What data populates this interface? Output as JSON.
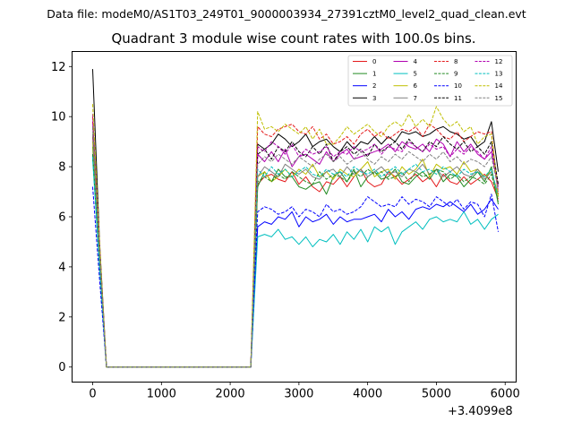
{
  "figure": {
    "suptitle": "Data file: modeM0/AS1T03_249T01_9000003934_27391cztM0_level2_quad_clean.evt",
    "offset_text": "+3.4099e8"
  },
  "chart_data": {
    "type": "line",
    "title": "Quadrant 3 module wise count rates with 100.0s bins.",
    "xlabel": "",
    "ylabel": "",
    "xlim": [
      -300,
      6160
    ],
    "ylim": [
      -0.6,
      12.6
    ],
    "xticks": [
      0,
      1000,
      2000,
      3000,
      4000,
      5000,
      6000
    ],
    "yticks": [
      0,
      2,
      4,
      6,
      8,
      10,
      12
    ],
    "grid": false,
    "legend_position": "top-right",
    "legend_columns": 4,
    "x": [
      0,
      100,
      200,
      2300,
      2400,
      2500,
      2600,
      2700,
      2800,
      2900,
      3000,
      3100,
      3200,
      3300,
      3400,
      3500,
      3600,
      3700,
      3800,
      3900,
      4000,
      4100,
      4200,
      4300,
      4400,
      4500,
      4600,
      4700,
      4800,
      4900,
      5000,
      5100,
      5200,
      5300,
      5400,
      5500,
      5600,
      5700,
      5800,
      5900
    ],
    "series": [
      {
        "name": "0",
        "color": "#e41a1c",
        "dash": false,
        "values": [
          9.2,
          4.6,
          0.0,
          0.0,
          7.3,
          7.6,
          7.7,
          7.5,
          7.4,
          7.8,
          7.3,
          7.6,
          7.2,
          7.0,
          7.4,
          7.3,
          7.6,
          7.2,
          7.6,
          7.9,
          7.4,
          7.2,
          7.3,
          7.8,
          7.6,
          7.3,
          7.5,
          7.7,
          7.4,
          7.6,
          7.2,
          7.7,
          7.4,
          7.3,
          7.6,
          7.3,
          7.5,
          7.7,
          7.4,
          6.7
        ]
      },
      {
        "name": "1",
        "color": "#228b22",
        "dash": false,
        "values": [
          8.8,
          4.4,
          0.0,
          0.0,
          7.2,
          7.8,
          7.4,
          7.9,
          7.6,
          7.6,
          7.2,
          7.1,
          7.3,
          7.4,
          6.9,
          7.6,
          7.8,
          7.4,
          7.9,
          7.2,
          7.6,
          7.8,
          7.5,
          7.6,
          7.9,
          7.4,
          7.3,
          7.6,
          7.8,
          7.5,
          7.9,
          7.4,
          7.7,
          7.6,
          7.2,
          7.5,
          7.8,
          7.4,
          8.0,
          6.5
        ]
      },
      {
        "name": "2",
        "color": "#0000ff",
        "dash": false,
        "values": [
          8.5,
          4.2,
          0.0,
          0.0,
          5.6,
          5.8,
          5.7,
          6.0,
          5.9,
          6.2,
          5.6,
          6.0,
          5.8,
          5.9,
          6.1,
          5.7,
          6.0,
          5.8,
          5.9,
          5.9,
          6.0,
          6.1,
          5.8,
          6.3,
          6.0,
          6.2,
          5.9,
          6.3,
          6.4,
          6.3,
          6.5,
          6.4,
          6.6,
          6.4,
          6.2,
          6.5,
          6.1,
          6.3,
          6.7,
          6.3
        ]
      },
      {
        "name": "3",
        "color": "#000000",
        "dash": false,
        "values": [
          11.9,
          5.0,
          0.0,
          0.0,
          8.9,
          8.7,
          8.9,
          9.3,
          9.1,
          8.8,
          9.0,
          9.3,
          8.8,
          9.0,
          9.1,
          8.8,
          8.6,
          9.0,
          8.7,
          9.0,
          8.9,
          9.2,
          8.9,
          9.2,
          9.0,
          9.4,
          9.3,
          9.4,
          9.2,
          9.3,
          9.5,
          9.6,
          9.4,
          9.3,
          9.1,
          9.2,
          8.8,
          9.0,
          9.8,
          7.8
        ]
      },
      {
        "name": "4",
        "color": "#b000b0",
        "dash": false,
        "values": [
          9.8,
          4.7,
          0.0,
          0.0,
          8.5,
          8.2,
          8.6,
          8.2,
          8.7,
          8.0,
          8.4,
          8.5,
          8.3,
          8.1,
          8.6,
          8.2,
          8.5,
          8.7,
          8.3,
          8.4,
          8.5,
          8.6,
          8.7,
          8.9,
          8.6,
          9.0,
          8.8,
          8.7,
          8.9,
          8.6,
          9.1,
          8.9,
          8.4,
          9.0,
          8.6,
          8.9,
          8.5,
          8.3,
          8.6,
          7.2
        ]
      },
      {
        "name": "5",
        "color": "#00bfbf",
        "dash": false,
        "values": [
          8.3,
          4.0,
          0.0,
          0.0,
          5.2,
          5.3,
          5.2,
          5.5,
          5.1,
          5.2,
          4.9,
          5.2,
          4.8,
          5.1,
          5.0,
          5.3,
          4.9,
          5.4,
          5.1,
          5.5,
          5.0,
          5.6,
          5.4,
          5.6,
          4.9,
          5.4,
          5.6,
          5.8,
          5.5,
          5.9,
          6.0,
          5.8,
          5.9,
          5.8,
          6.2,
          5.7,
          5.9,
          5.5,
          5.9,
          6.1
        ]
      },
      {
        "name": "6",
        "color": "#bfbf00",
        "dash": false,
        "values": [
          9.0,
          4.5,
          0.0,
          0.0,
          7.6,
          7.8,
          7.4,
          7.6,
          7.9,
          7.6,
          7.9,
          7.7,
          8.1,
          7.6,
          7.8,
          7.5,
          7.9,
          7.7,
          7.6,
          7.9,
          8.2,
          7.6,
          7.8,
          7.9,
          7.5,
          8.0,
          7.7,
          7.9,
          8.3,
          7.6,
          8.1,
          7.9,
          8.0,
          7.7,
          8.2,
          7.8,
          7.9,
          7.6,
          7.8,
          6.8
        ]
      },
      {
        "name": "7",
        "color": "#808080",
        "dash": false,
        "values": [
          9.3,
          4.6,
          0.0,
          0.0,
          7.6,
          8.0,
          7.8,
          7.6,
          8.1,
          7.9,
          7.7,
          7.9,
          7.6,
          7.5,
          7.8,
          7.9,
          7.6,
          8.0,
          7.7,
          7.9,
          7.6,
          7.8,
          8.0,
          7.7,
          7.8,
          7.6,
          7.9,
          7.8,
          8.1,
          7.7,
          7.9,
          7.6,
          7.8,
          8.0,
          7.7,
          7.6,
          7.9,
          7.5,
          7.8,
          6.9
        ]
      },
      {
        "name": "8",
        "color": "#e41a1c",
        "dash": true,
        "values": [
          10.0,
          4.8,
          0.0,
          0.0,
          9.6,
          9.3,
          9.2,
          9.5,
          9.6,
          9.7,
          9.4,
          9.3,
          9.6,
          9.1,
          9.3,
          8.9,
          9.0,
          9.2,
          8.9,
          9.3,
          9.5,
          9.2,
          9.4,
          9.1,
          9.3,
          9.5,
          9.4,
          9.6,
          9.2,
          9.7,
          9.5,
          9.2,
          9.1,
          9.4,
          9.0,
          9.2,
          9.4,
          9.3,
          9.4,
          6.9
        ]
      },
      {
        "name": "9",
        "color": "#228b22",
        "dash": true,
        "values": [
          8.5,
          4.1,
          0.0,
          0.0,
          7.4,
          7.6,
          7.4,
          7.7,
          7.5,
          7.8,
          7.6,
          7.4,
          7.3,
          7.8,
          7.5,
          7.7,
          7.6,
          7.4,
          7.8,
          7.6,
          7.9,
          7.7,
          7.8,
          7.5,
          7.6,
          7.8,
          7.4,
          7.8,
          7.6,
          7.7,
          7.9,
          7.8,
          7.5,
          7.7,
          7.4,
          7.6,
          7.5,
          7.3,
          7.7,
          6.6
        ]
      },
      {
        "name": "10",
        "color": "#0000ff",
        "dash": true,
        "values": [
          7.2,
          3.5,
          0.0,
          0.0,
          6.2,
          6.4,
          6.3,
          6.1,
          6.2,
          6.4,
          6.0,
          6.3,
          6.2,
          6.0,
          6.5,
          6.2,
          6.3,
          6.1,
          6.2,
          6.4,
          6.8,
          6.6,
          6.4,
          6.5,
          6.4,
          6.8,
          6.5,
          6.7,
          6.6,
          6.4,
          6.8,
          6.6,
          6.4,
          6.7,
          6.3,
          6.6,
          6.5,
          6.0,
          6.9,
          5.4
        ]
      },
      {
        "name": "11",
        "color": "#000000",
        "dash": true,
        "values": [
          9.6,
          4.6,
          0.0,
          0.0,
          8.5,
          8.7,
          8.3,
          8.8,
          8.6,
          9.0,
          8.6,
          8.4,
          8.8,
          8.5,
          8.9,
          8.2,
          8.6,
          8.8,
          8.5,
          8.7,
          8.4,
          8.9,
          8.6,
          8.8,
          9.0,
          8.7,
          9.1,
          8.8,
          8.6,
          9.0,
          8.8,
          9.2,
          8.9,
          8.7,
          9.0,
          8.6,
          8.8,
          8.5,
          9.0,
          7.3
        ]
      },
      {
        "name": "12",
        "color": "#b000b0",
        "dash": true,
        "values": [
          10.1,
          4.9,
          0.0,
          0.0,
          8.8,
          8.6,
          9.0,
          8.8,
          8.5,
          8.9,
          8.4,
          8.7,
          8.5,
          8.6,
          8.8,
          8.4,
          8.6,
          8.5,
          8.8,
          8.6,
          8.7,
          8.9,
          8.5,
          8.8,
          8.7,
          8.6,
          9.0,
          8.8,
          8.6,
          8.9,
          8.7,
          8.8,
          8.4,
          8.7,
          8.5,
          8.8,
          8.6,
          8.3,
          8.8,
          7.0
        ]
      },
      {
        "name": "13",
        "color": "#00bfbf",
        "dash": true,
        "values": [
          8.4,
          4.1,
          0.0,
          0.0,
          7.9,
          7.6,
          8.0,
          7.7,
          7.9,
          7.6,
          7.8,
          8.0,
          7.7,
          7.6,
          7.9,
          7.7,
          7.8,
          7.6,
          8.0,
          7.8,
          7.7,
          7.9,
          7.6,
          7.8,
          8.0,
          7.7,
          7.9,
          8.1,
          7.8,
          7.9,
          7.7,
          8.0,
          7.8,
          7.6,
          7.9,
          7.7,
          7.8,
          7.6,
          7.9,
          6.8
        ]
      },
      {
        "name": "14",
        "color": "#bfbf00",
        "dash": true,
        "values": [
          10.5,
          5.0,
          0.0,
          0.0,
          10.2,
          9.5,
          9.6,
          9.4,
          9.7,
          9.5,
          9.3,
          9.6,
          9.1,
          9.5,
          8.9,
          8.9,
          9.2,
          9.6,
          9.3,
          9.5,
          9.7,
          9.4,
          9.2,
          9.6,
          9.8,
          9.6,
          10.1,
          9.6,
          9.9,
          9.6,
          10.4,
          9.9,
          9.6,
          9.8,
          9.4,
          9.6,
          8.9,
          9.2,
          9.3,
          6.8
        ]
      },
      {
        "name": "15",
        "color": "#808080",
        "dash": true,
        "values": [
          9.6,
          4.6,
          0.0,
          0.0,
          8.1,
          8.4,
          8.2,
          8.5,
          8.3,
          8.1,
          8.4,
          8.2,
          8.0,
          8.3,
          8.5,
          8.2,
          8.4,
          8.1,
          8.3,
          8.6,
          8.3,
          8.1,
          8.4,
          8.2,
          8.5,
          8.3,
          8.6,
          8.4,
          8.2,
          8.5,
          8.3,
          8.6,
          8.2,
          8.4,
          8.1,
          8.3,
          8.2,
          8.0,
          8.4,
          7.1
        ]
      }
    ]
  }
}
